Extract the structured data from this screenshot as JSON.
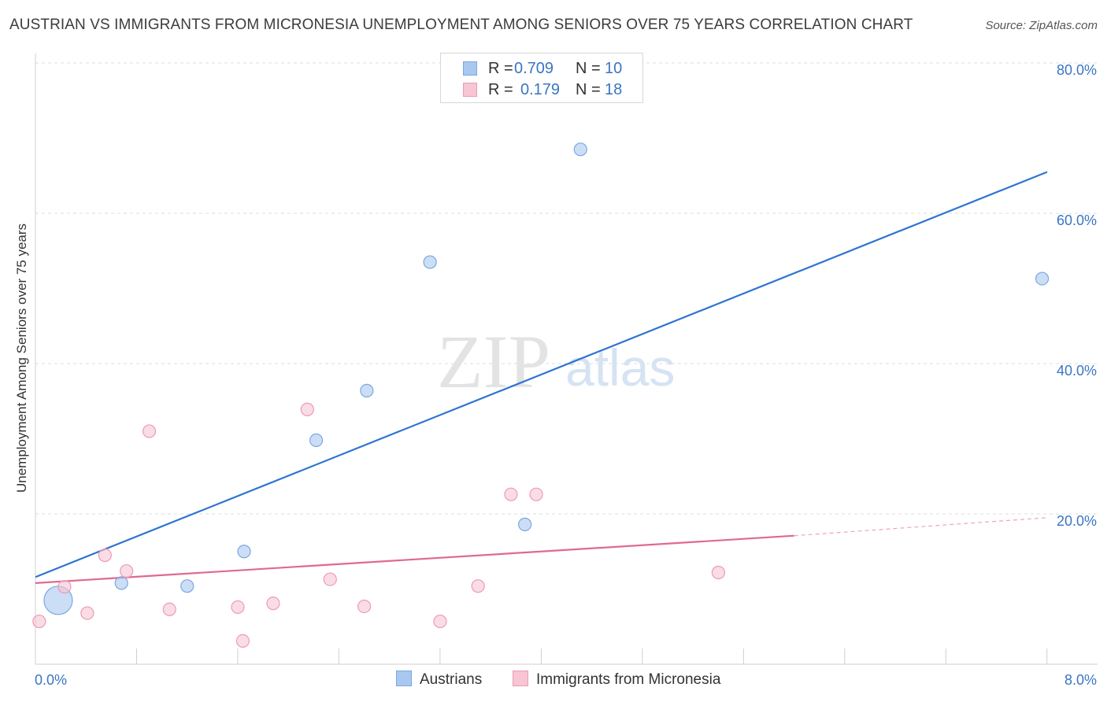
{
  "title": "AUSTRIAN VS IMMIGRANTS FROM MICRONESIA UNEMPLOYMENT AMONG SENIORS OVER 75 YEARS CORRELATION CHART",
  "source": "Source: ZipAtlas.com",
  "watermark": {
    "zip": "ZIP",
    "atlas": "atlas"
  },
  "legend_top": {
    "rows": [
      {
        "r_label": "R =",
        "r_value": "0.709",
        "n_label": "N =",
        "n_value": "10",
        "color": "#a9c8f0",
        "border": "#7ba7e0"
      },
      {
        "r_label": "R =",
        "r_value": "0.179",
        "n_label": "N =",
        "n_value": "18",
        "color": "#f7c5d3",
        "border": "#ee9ab3"
      }
    ]
  },
  "legend_bottom": [
    {
      "label": "Austrians",
      "color": "#a9c8f0",
      "border": "#7ba7e0"
    },
    {
      "label": "Immigrants from Micronesia",
      "color": "#f7c5d3",
      "border": "#ee9ab3"
    }
  ],
  "chart_data": {
    "type": "scatter",
    "title": "AUSTRIAN VS IMMIGRANTS FROM MICRONESIA UNEMPLOYMENT AMONG SENIORS OVER 75 YEARS CORRELATION CHART",
    "xlabel": "",
    "ylabel": "Unemployment Among Seniors over 75 years",
    "xlim": [
      0,
      8
    ],
    "ylim": [
      0,
      80
    ],
    "x_tick_labels": [
      "0.0%",
      "8.0%"
    ],
    "y_tick_labels": [
      "20.0%",
      "40.0%",
      "60.0%",
      "80.0%"
    ],
    "y_ticks": [
      20,
      40,
      60,
      80
    ],
    "grid": true,
    "series": [
      {
        "name": "Austrians",
        "color": "#a9c8f0",
        "stroke": "#7ba7e0",
        "trend_color": "#2f74d0",
        "points": [
          {
            "x": 0.18,
            "y": 8.5,
            "big": true
          },
          {
            "x": 0.68,
            "y": 10.8
          },
          {
            "x": 1.2,
            "y": 10.4
          },
          {
            "x": 1.65,
            "y": 15.0
          },
          {
            "x": 2.22,
            "y": 29.8
          },
          {
            "x": 2.62,
            "y": 36.4
          },
          {
            "x": 3.12,
            "y": 53.5
          },
          {
            "x": 3.87,
            "y": 18.6
          },
          {
            "x": 4.31,
            "y": 68.5
          },
          {
            "x": 7.96,
            "y": 51.3
          }
        ],
        "trend": {
          "x1": 0.0,
          "y1": 11.6,
          "x2": 8.0,
          "y2": 65.5
        }
      },
      {
        "name": "Immigrants from Micronesia",
        "color": "#f7c5d3",
        "stroke": "#ee9ab3",
        "trend_color": "#e0698f",
        "points": [
          {
            "x": 0.03,
            "y": 5.7
          },
          {
            "x": 0.23,
            "y": 10.3
          },
          {
            "x": 0.41,
            "y": 6.8
          },
          {
            "x": 0.55,
            "y": 14.5
          },
          {
            "x": 0.72,
            "y": 12.4
          },
          {
            "x": 0.9,
            "y": 31.0
          },
          {
            "x": 1.06,
            "y": 7.3
          },
          {
            "x": 1.6,
            "y": 7.6
          },
          {
            "x": 1.64,
            "y": 3.1
          },
          {
            "x": 1.88,
            "y": 8.1
          },
          {
            "x": 2.15,
            "y": 33.9
          },
          {
            "x": 2.33,
            "y": 11.3
          },
          {
            "x": 2.6,
            "y": 7.7
          },
          {
            "x": 3.2,
            "y": 5.7
          },
          {
            "x": 3.5,
            "y": 10.4
          },
          {
            "x": 3.76,
            "y": 22.6
          },
          {
            "x": 3.96,
            "y": 22.6
          },
          {
            "x": 5.4,
            "y": 12.2
          }
        ],
        "trend": {
          "x1": 0.0,
          "y1": 10.8,
          "x2": 6.0,
          "y2": 17.1
        },
        "trend_dashed": {
          "x1": 6.0,
          "y1": 17.1,
          "x2": 8.0,
          "y2": 19.5
        }
      }
    ]
  }
}
